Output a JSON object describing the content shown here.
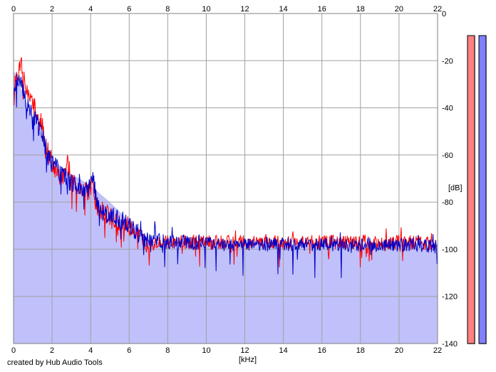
{
  "chart_data": {
    "type": "line",
    "xlabel": "[kHz]",
    "ylabel": "[dB]",
    "xlim": [
      0,
      22
    ],
    "ylim": [
      -140,
      0
    ],
    "x_ticks": [
      0,
      2,
      4,
      6,
      8,
      10,
      12,
      14,
      16,
      18,
      20,
      22
    ],
    "y_ticks": [
      0,
      -20,
      -40,
      -60,
      -80,
      -100,
      -120,
      -140
    ],
    "grid": true,
    "series": [
      {
        "color": "#ff0000",
        "x": [
          0,
          0.2,
          0.4,
          0.6,
          0.8,
          1.0,
          1.2,
          1.4,
          1.6,
          1.8,
          2.0,
          2.3,
          2.6,
          2.8,
          3.0,
          3.3,
          3.6,
          3.9,
          4.1,
          4.3,
          4.6,
          5.0,
          5.4,
          5.8,
          6.2,
          6.6,
          7.0,
          7.4,
          8,
          9,
          10,
          11,
          12,
          13,
          14,
          15,
          16,
          17,
          18,
          19,
          20,
          21,
          22
        ],
        "values": [
          -33,
          -26,
          -22,
          -30,
          -36,
          -38,
          -42,
          -48,
          -52,
          -58,
          -65,
          -68,
          -70,
          -62,
          -72,
          -73,
          -74,
          -76,
          -72,
          -82,
          -84,
          -86,
          -88,
          -89,
          -92,
          -95,
          -98,
          -97,
          -97,
          -97,
          -97,
          -97,
          -97,
          -97,
          -97,
          -97,
          -97,
          -97,
          -97,
          -97,
          -97,
          -97,
          -98
        ]
      },
      {
        "color": "#0000c8",
        "x": [
          0,
          0.2,
          0.4,
          0.6,
          0.8,
          1.0,
          1.2,
          1.4,
          1.6,
          1.8,
          2.0,
          2.3,
          2.6,
          2.8,
          3.0,
          3.3,
          3.6,
          3.9,
          4.1,
          4.3,
          4.6,
          5.0,
          5.4,
          5.8,
          6.2,
          6.6,
          7.0,
          7.4,
          8,
          9,
          10,
          11,
          12,
          13,
          14,
          15,
          16,
          17,
          18,
          19,
          20,
          21,
          22
        ],
        "values": [
          -36,
          -28,
          -30,
          -36,
          -40,
          -42,
          -46,
          -50,
          -55,
          -60,
          -64,
          -66,
          -70,
          -69,
          -72,
          -73,
          -74,
          -74,
          -66,
          -80,
          -84,
          -86,
          -87,
          -88,
          -91,
          -94,
          -96,
          -96,
          -97,
          -97,
          -98,
          -98,
          -98,
          -98,
          -98,
          -98,
          -98,
          -98,
          -98,
          -98,
          -98,
          -98,
          -99
        ]
      }
    ],
    "area": {
      "color": "#c0c0fa",
      "x": [
        0,
        0.3,
        0.6,
        1.0,
        1.5,
        2.0,
        3.0,
        4.0,
        5.0,
        6.0,
        7.0,
        8,
        10,
        12,
        14,
        16,
        18,
        20,
        22
      ],
      "values": [
        -24,
        -30,
        -36,
        -44,
        -52,
        -62,
        -68,
        -73,
        -80,
        -88,
        -96,
        -98,
        -98,
        -98,
        -98,
        -98,
        -98,
        -98,
        -98
      ]
    },
    "level_meters": [
      {
        "color": "#ff8080",
        "value": -9
      },
      {
        "color": "#8080ff",
        "value": -9
      }
    ]
  },
  "credit": "created by Hub Audio Tools"
}
